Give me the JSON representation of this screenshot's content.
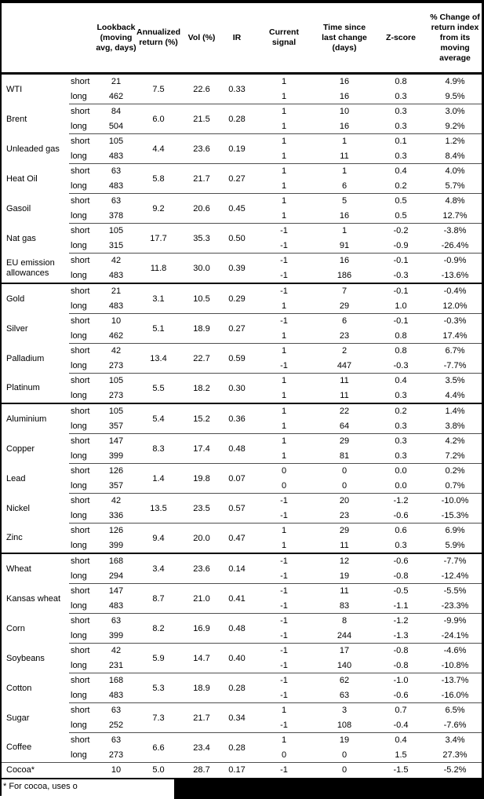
{
  "table": {
    "headers": {
      "lookback": "Lookback\n(moving\navg, days)",
      "annualized_return": "Annualized\nreturn (%)",
      "vol": "Vol (%)",
      "ir": "IR",
      "current_signal": "Current\nsignal",
      "time_since": "Time since\nlast change\n(days)",
      "z_score": "Z-score",
      "pct_change": "% Change of\nreturn index\nfrom its\nmoving\naverage"
    },
    "footnote": "* For cocoa, uses o",
    "commodities": [
      {
        "name": "WTI",
        "ann": "7.5",
        "vol": "22.6",
        "ir": "0.33",
        "divider_after": "thin",
        "rows": [
          {
            "side": "short",
            "lookback": "21",
            "signal": "1",
            "time": "16",
            "z": "0.8",
            "pct": "4.9%"
          },
          {
            "side": "long",
            "lookback": "462",
            "signal": "1",
            "time": "16",
            "z": "0.3",
            "pct": "9.5%"
          }
        ]
      },
      {
        "name": "Brent",
        "ann": "6.0",
        "vol": "21.5",
        "ir": "0.28",
        "divider_after": "thin",
        "rows": [
          {
            "side": "short",
            "lookback": "84",
            "signal": "1",
            "time": "10",
            "z": "0.3",
            "pct": "3.0%"
          },
          {
            "side": "long",
            "lookback": "504",
            "signal": "1",
            "time": "16",
            "z": "0.3",
            "pct": "9.2%"
          }
        ]
      },
      {
        "name": "Unleaded gas",
        "ann": "4.4",
        "vol": "23.6",
        "ir": "0.19",
        "divider_after": "thin",
        "rows": [
          {
            "side": "short",
            "lookback": "105",
            "signal": "1",
            "time": "1",
            "z": "0.1",
            "pct": "1.2%"
          },
          {
            "side": "long",
            "lookback": "483",
            "signal": "1",
            "time": "11",
            "z": "0.3",
            "pct": "8.4%"
          }
        ]
      },
      {
        "name": "Heat Oil",
        "ann": "5.8",
        "vol": "21.7",
        "ir": "0.27",
        "divider_after": "thin",
        "rows": [
          {
            "side": "short",
            "lookback": "63",
            "signal": "1",
            "time": "1",
            "z": "0.4",
            "pct": "4.0%"
          },
          {
            "side": "long",
            "lookback": "483",
            "signal": "1",
            "time": "6",
            "z": "0.2",
            "pct": "5.7%"
          }
        ]
      },
      {
        "name": "Gasoil",
        "ann": "9.2",
        "vol": "20.6",
        "ir": "0.45",
        "divider_after": "thin",
        "rows": [
          {
            "side": "short",
            "lookback": "63",
            "signal": "1",
            "time": "5",
            "z": "0.5",
            "pct": "4.8%"
          },
          {
            "side": "long",
            "lookback": "378",
            "signal": "1",
            "time": "16",
            "z": "0.5",
            "pct": "12.7%"
          }
        ]
      },
      {
        "name": "Nat gas",
        "ann": "17.7",
        "vol": "35.3",
        "ir": "0.50",
        "divider_after": "thin",
        "rows": [
          {
            "side": "short",
            "lookback": "105",
            "signal": "-1",
            "time": "1",
            "z": "-0.2",
            "pct": "-3.8%"
          },
          {
            "side": "long",
            "lookback": "315",
            "signal": "-1",
            "time": "91",
            "z": "-0.9",
            "pct": "-26.4%"
          }
        ]
      },
      {
        "name": "EU emission allowances",
        "ann": "11.8",
        "vol": "30.0",
        "ir": "0.39",
        "divider_after": "thick",
        "rows": [
          {
            "side": "short",
            "lookback": "42",
            "signal": "-1",
            "time": "16",
            "z": "-0.1",
            "pct": "-0.9%"
          },
          {
            "side": "long",
            "lookback": "483",
            "signal": "-1",
            "time": "186",
            "z": "-0.3",
            "pct": "-13.6%"
          }
        ]
      },
      {
        "name": "Gold",
        "ann": "3.1",
        "vol": "10.5",
        "ir": "0.29",
        "divider_after": "thin",
        "rows": [
          {
            "side": "short",
            "lookback": "21",
            "signal": "-1",
            "time": "7",
            "z": "-0.1",
            "pct": "-0.4%"
          },
          {
            "side": "long",
            "lookback": "483",
            "signal": "1",
            "time": "29",
            "z": "1.0",
            "pct": "12.0%"
          }
        ]
      },
      {
        "name": "Silver",
        "ann": "5.1",
        "vol": "18.9",
        "ir": "0.27",
        "divider_after": "thin",
        "rows": [
          {
            "side": "short",
            "lookback": "10",
            "signal": "-1",
            "time": "6",
            "z": "-0.1",
            "pct": "-0.3%"
          },
          {
            "side": "long",
            "lookback": "462",
            "signal": "1",
            "time": "23",
            "z": "0.8",
            "pct": "17.4%"
          }
        ]
      },
      {
        "name": "Palladium",
        "ann": "13.4",
        "vol": "22.7",
        "ir": "0.59",
        "divider_after": "thin",
        "rows": [
          {
            "side": "short",
            "lookback": "42",
            "signal": "1",
            "time": "2",
            "z": "0.8",
            "pct": "6.7%"
          },
          {
            "side": "long",
            "lookback": "273",
            "signal": "-1",
            "time": "447",
            "z": "-0.3",
            "pct": "-7.7%"
          }
        ]
      },
      {
        "name": "Platinum",
        "ann": "5.5",
        "vol": "18.2",
        "ir": "0.30",
        "divider_after": "thick",
        "rows": [
          {
            "side": "short",
            "lookback": "105",
            "signal": "1",
            "time": "11",
            "z": "0.4",
            "pct": "3.5%"
          },
          {
            "side": "long",
            "lookback": "273",
            "signal": "1",
            "time": "11",
            "z": "0.3",
            "pct": "4.4%"
          }
        ]
      },
      {
        "name": "Aluminium",
        "ann": "5.4",
        "vol": "15.2",
        "ir": "0.36",
        "divider_after": "thin",
        "rows": [
          {
            "side": "short",
            "lookback": "105",
            "signal": "1",
            "time": "22",
            "z": "0.2",
            "pct": "1.4%"
          },
          {
            "side": "long",
            "lookback": "357",
            "signal": "1",
            "time": "64",
            "z": "0.3",
            "pct": "3.8%"
          }
        ]
      },
      {
        "name": "Copper",
        "ann": "8.3",
        "vol": "17.4",
        "ir": "0.48",
        "divider_after": "thin",
        "rows": [
          {
            "side": "short",
            "lookback": "147",
            "signal": "1",
            "time": "29",
            "z": "0.3",
            "pct": "4.2%"
          },
          {
            "side": "long",
            "lookback": "399",
            "signal": "1",
            "time": "81",
            "z": "0.3",
            "pct": "7.2%"
          }
        ]
      },
      {
        "name": "Lead",
        "ann": "1.4",
        "vol": "19.8",
        "ir": "0.07",
        "divider_after": "thin",
        "rows": [
          {
            "side": "short",
            "lookback": "126",
            "signal": "0",
            "time": "0",
            "z": "0.0",
            "pct": "0.2%"
          },
          {
            "side": "long",
            "lookback": "357",
            "signal": "0",
            "time": "0",
            "z": "0.0",
            "pct": "0.7%"
          }
        ]
      },
      {
        "name": "Nickel",
        "ann": "13.5",
        "vol": "23.5",
        "ir": "0.57",
        "divider_after": "thin",
        "rows": [
          {
            "side": "short",
            "lookback": "42",
            "signal": "-1",
            "time": "20",
            "z": "-1.2",
            "pct": "-10.0%"
          },
          {
            "side": "long",
            "lookback": "336",
            "signal": "-1",
            "time": "23",
            "z": "-0.6",
            "pct": "-15.3%"
          }
        ]
      },
      {
        "name": "Zinc",
        "ann": "9.4",
        "vol": "20.0",
        "ir": "0.47",
        "divider_after": "thick",
        "rows": [
          {
            "side": "short",
            "lookback": "126",
            "signal": "1",
            "time": "29",
            "z": "0.6",
            "pct": "6.9%"
          },
          {
            "side": "long",
            "lookback": "399",
            "signal": "1",
            "time": "11",
            "z": "0.3",
            "pct": "5.9%"
          }
        ]
      },
      {
        "name": "Wheat",
        "ann": "3.4",
        "vol": "23.6",
        "ir": "0.14",
        "divider_after": "thin",
        "rows": [
          {
            "side": "short",
            "lookback": "168",
            "signal": "-1",
            "time": "12",
            "z": "-0.6",
            "pct": "-7.7%"
          },
          {
            "side": "long",
            "lookback": "294",
            "signal": "-1",
            "time": "19",
            "z": "-0.8",
            "pct": "-12.4%"
          }
        ]
      },
      {
        "name": "Kansas wheat",
        "ann": "8.7",
        "vol": "21.0",
        "ir": "0.41",
        "divider_after": "thin",
        "rows": [
          {
            "side": "short",
            "lookback": "147",
            "signal": "-1",
            "time": "11",
            "z": "-0.5",
            "pct": "-5.5%"
          },
          {
            "side": "long",
            "lookback": "483",
            "signal": "-1",
            "time": "83",
            "z": "-1.1",
            "pct": "-23.3%"
          }
        ]
      },
      {
        "name": "Corn",
        "ann": "8.2",
        "vol": "16.9",
        "ir": "0.48",
        "divider_after": "thin",
        "rows": [
          {
            "side": "short",
            "lookback": "63",
            "signal": "-1",
            "time": "8",
            "z": "-1.2",
            "pct": "-9.9%"
          },
          {
            "side": "long",
            "lookback": "399",
            "signal": "-1",
            "time": "244",
            "z": "-1.3",
            "pct": "-24.1%"
          }
        ]
      },
      {
        "name": "Soybeans",
        "ann": "5.9",
        "vol": "14.7",
        "ir": "0.40",
        "divider_after": "thin",
        "rows": [
          {
            "side": "short",
            "lookback": "42",
            "signal": "-1",
            "time": "17",
            "z": "-0.8",
            "pct": "-4.6%"
          },
          {
            "side": "long",
            "lookback": "231",
            "signal": "-1",
            "time": "140",
            "z": "-0.8",
            "pct": "-10.8%"
          }
        ]
      },
      {
        "name": "Cotton",
        "ann": "5.3",
        "vol": "18.9",
        "ir": "0.28",
        "divider_after": "thin",
        "rows": [
          {
            "side": "short",
            "lookback": "168",
            "signal": "-1",
            "time": "62",
            "z": "-1.0",
            "pct": "-13.7%"
          },
          {
            "side": "long",
            "lookback": "483",
            "signal": "-1",
            "time": "63",
            "z": "-0.6",
            "pct": "-16.0%"
          }
        ]
      },
      {
        "name": "Sugar",
        "ann": "7.3",
        "vol": "21.7",
        "ir": "0.34",
        "divider_after": "thin",
        "rows": [
          {
            "side": "short",
            "lookback": "63",
            "signal": "1",
            "time": "3",
            "z": "0.7",
            "pct": "6.5%"
          },
          {
            "side": "long",
            "lookback": "252",
            "signal": "-1",
            "time": "108",
            "z": "-0.4",
            "pct": "-7.6%"
          }
        ]
      },
      {
        "name": "Coffee",
        "ann": "6.6",
        "vol": "23.4",
        "ir": "0.28",
        "divider_after": "full-thin",
        "rows": [
          {
            "side": "short",
            "lookback": "63",
            "signal": "1",
            "time": "19",
            "z": "0.4",
            "pct": "3.4%"
          },
          {
            "side": "long",
            "lookback": "273",
            "signal": "0",
            "time": "0",
            "z": "1.5",
            "pct": "27.3%"
          }
        ]
      },
      {
        "name": "Cocoa*",
        "ann": "5.0",
        "vol": "28.7",
        "ir": "0.17",
        "divider_after": "none",
        "rows": [
          {
            "side": "",
            "lookback": "10",
            "signal": "-1",
            "time": "0",
            "z": "-1.5",
            "pct": "-5.2%"
          }
        ]
      }
    ]
  }
}
